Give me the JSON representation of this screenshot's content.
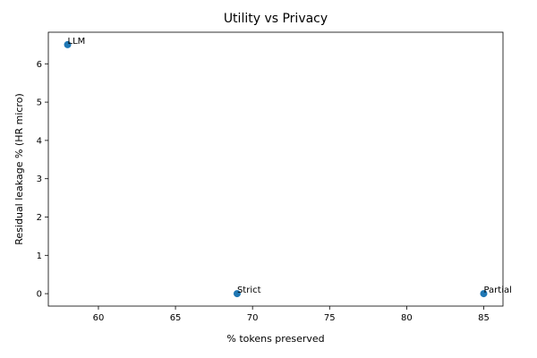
{
  "chart_data": {
    "type": "scatter",
    "title": "Utility vs Privacy",
    "xlabel": "% tokens preserved",
    "ylabel": "Residual leakage % (HR micro)",
    "xlim": [
      56.75,
      86.25
    ],
    "ylim": [
      -0.325,
      6.825
    ],
    "xticks": [
      60,
      65,
      70,
      75,
      80,
      85
    ],
    "yticks": [
      0,
      1,
      2,
      3,
      4,
      5,
      6
    ],
    "grid": false,
    "legend": "none",
    "marker_color": "#1f77b4",
    "points": [
      {
        "label": "LLM",
        "x": 58,
        "y": 6.5
      },
      {
        "label": "Strict",
        "x": 69,
        "y": 0.0
      },
      {
        "label": "Partial",
        "x": 85,
        "y": 0.0
      }
    ]
  }
}
